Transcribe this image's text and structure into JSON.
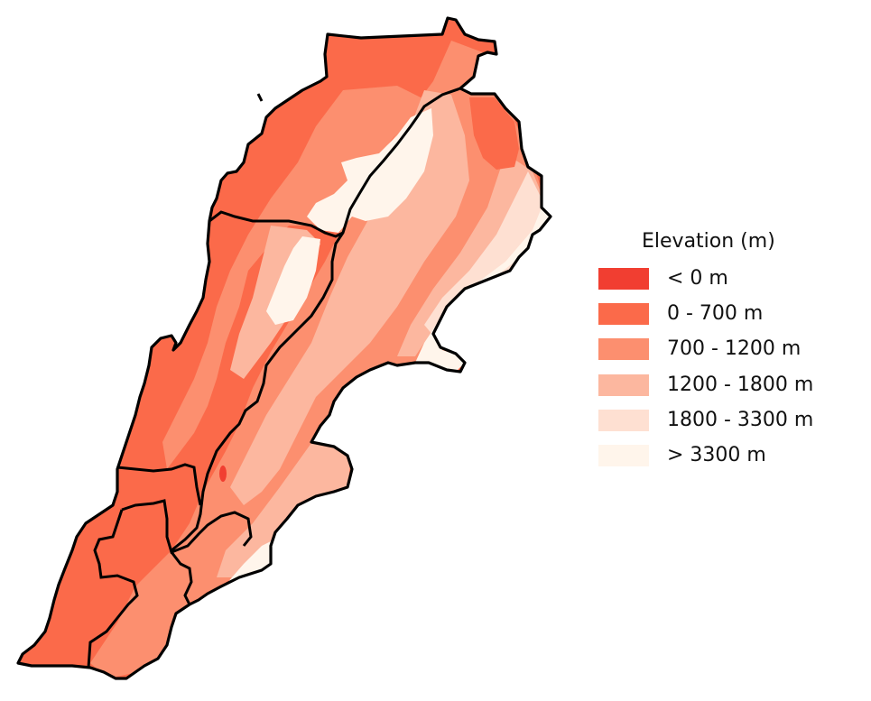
{
  "legend": {
    "title": "Elevation (m)",
    "items": [
      {
        "label": "< 0 m",
        "color": "#f13e31"
      },
      {
        "label": "0 - 700 m",
        "color": "#fb6a4a"
      },
      {
        "label": "700 - 1200 m",
        "color": "#fc8f6f"
      },
      {
        "label": "1200 - 1800 m",
        "color": "#fcb79f"
      },
      {
        "label": "1800 - 3300 m",
        "color": "#fee0d2"
      },
      {
        "label": "> 3300 m",
        "color": "#fff5eb"
      }
    ]
  },
  "colors": {
    "border": "#000000",
    "background": "#ffffff"
  }
}
